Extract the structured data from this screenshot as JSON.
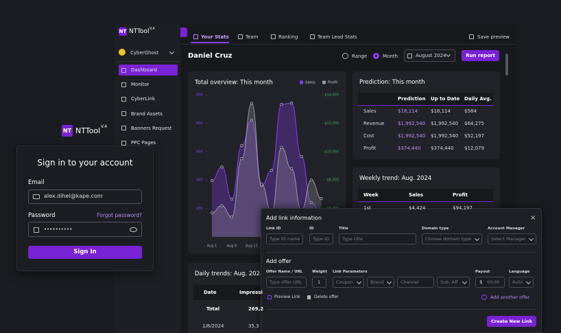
{
  "brand": {
    "name": "NTTool",
    "logo": "NT",
    "version": "V.4"
  },
  "sidebar": {
    "account": "CyberGhost",
    "items": [
      "Dashboard",
      "Monitor",
      "CyberLink",
      "Brand Assets",
      "Banners Request",
      "PPC Pages"
    ]
  },
  "tabs": [
    "Your Stats",
    "Team",
    "Ranking",
    "Team Lead Stats"
  ],
  "save_preview": "Save preview",
  "header": {
    "name": "Daniel Cruz",
    "range": "Range",
    "month": "Month",
    "date": "August 2024",
    "run": "Run report"
  },
  "chart_data": {
    "type": "line",
    "title": "Total overview: This month",
    "categories": [
      "Aug 1",
      null,
      "Aug 6",
      null,
      "Aug 11",
      null,
      null,
      null,
      null,
      null,
      null,
      null
    ],
    "series": [
      {
        "name": "Sales",
        "color": "#8b3dff",
        "values": [
          298,
          346,
          233,
          421,
          511,
          281,
          334,
          566,
          571,
          383,
          221,
          185
        ]
      },
      {
        "name": "Profit",
        "color": "#9a9aa2",
        "axis": "y2",
        "values": [
          5700,
          6200,
          5400,
          9500,
          13400,
          7700,
          5700,
          10300,
          8800,
          5900,
          8000,
          6700
        ]
      }
    ],
    "ylim": [
      100,
      600
    ],
    "yticks": [
      200,
      300,
      400,
      500,
      600
    ],
    "y2lim": [
      4000,
      14000
    ],
    "y2ticks": [
      {
        "value": 6000,
        "label": "$6,000"
      },
      {
        "value": 8000,
        "label": "$8,000"
      },
      {
        "value": 10000,
        "label": "$10,000"
      },
      {
        "value": 12000,
        "label": "$12,000"
      },
      {
        "value": 14000,
        "label": "$14,000"
      }
    ],
    "legend": "top-right"
  },
  "prediction": {
    "title": "Prediction: This month",
    "columns": [
      "Prediction",
      "Up to Date",
      "Daily Avg."
    ],
    "rows": [
      {
        "label": "Sales",
        "values": [
          "$18,114",
          "$18,114",
          "$584"
        ]
      },
      {
        "label": "Revenue",
        "values": [
          "$1,992,540",
          "$1,992,540",
          "$64,275"
        ]
      },
      {
        "label": "Cost",
        "values": [
          "$1,992,540",
          "$1,992,540",
          "$52,197"
        ]
      },
      {
        "label": "Profit",
        "values": [
          "$374,440",
          "$374,440",
          "$12,079"
        ]
      }
    ]
  },
  "weekly": {
    "title": "Weekly trend: Aug. 2024",
    "columns": [
      "Week",
      "Sales",
      "Profit"
    ],
    "rows": [
      [
        "1st",
        "$4,424",
        "$94,197"
      ]
    ]
  },
  "daily": {
    "title": "Daily trends: Aug. 2024",
    "columns": [
      "Date",
      "Impressi"
    ],
    "rows": [
      [
        "Total",
        "269,2"
      ],
      [
        "1/8/2024",
        "35,3"
      ]
    ]
  },
  "signin": {
    "title": "Sign in to your account",
    "email_label": "Email",
    "email": "alex.dihel@kape.com",
    "password_label": "Password",
    "forgot": "Forgot password?",
    "password": "••••••••••",
    "button": "Sign In"
  },
  "modal": {
    "title": "Add link information",
    "close": "×",
    "fields": [
      {
        "label": "Link ID",
        "placeholder": "Type ID name"
      },
      {
        "label": "ID",
        "placeholder": "Type ID"
      },
      {
        "label": "Title",
        "placeholder": "Type title"
      },
      {
        "label": "Domain type",
        "placeholder": "Choose domain type"
      },
      {
        "label": "Account Manager",
        "placeholder": "Select Manager"
      }
    ],
    "offer_title": "Add offer",
    "offer_label": "Offer Name / URL",
    "offer_placeholder": "Type offer URL",
    "weight_label": "Weight",
    "weight": "1",
    "params_label": "Link Parameters",
    "params": [
      "Coupon",
      "Brand",
      "Channel",
      "Sub. Aff"
    ],
    "payout_label": "Payout",
    "currency": "$",
    "payout": "00.00",
    "language_label": "Language",
    "language": "Auto",
    "preview": "Preview Link",
    "delete": "Delete offer",
    "add_another": "Add another offer",
    "create": "Create New Link"
  }
}
